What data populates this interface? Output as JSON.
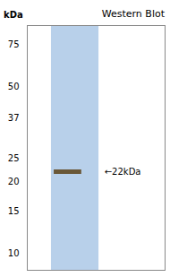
{
  "chart_data": {
    "type": "gel",
    "title": "Western Blot",
    "ylabel": "kDa",
    "log": "y",
    "ylim": [
      8.5,
      90
    ],
    "yticks": [
      10,
      15,
      20,
      25,
      37,
      50,
      75
    ],
    "values": [
      22
    ],
    "value_labels": [
      "←22kDa"
    ],
    "data_labels": true,
    "color": "#6a5838"
  }
}
